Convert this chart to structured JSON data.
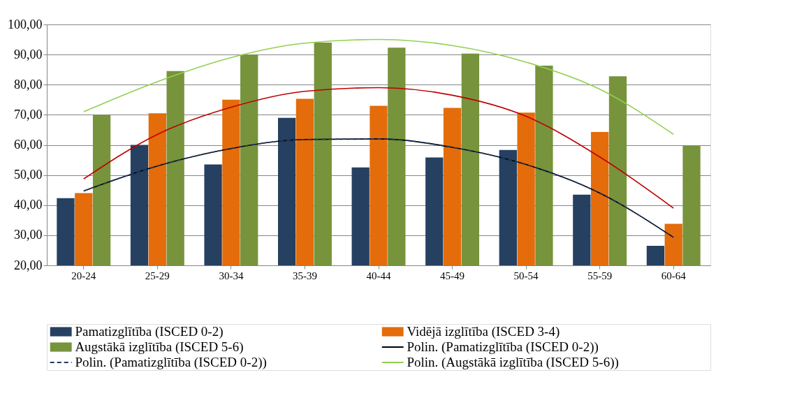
{
  "chart_data": {
    "type": "bar",
    "categories": [
      "20-24",
      "25-29",
      "30-34",
      "35-39",
      "40-44",
      "45-49",
      "50-54",
      "55-59",
      "60-64"
    ],
    "ylim": [
      20,
      100
    ],
    "yticks": [
      {
        "value": 20,
        "label": "20,00"
      },
      {
        "value": 30,
        "label": "30,00"
      },
      {
        "value": 40,
        "label": "40,00"
      },
      {
        "value": 50,
        "label": "50,00"
      },
      {
        "value": 60,
        "label": "60,00"
      },
      {
        "value": 70,
        "label": "70,00"
      },
      {
        "value": 80,
        "label": "80,00"
      },
      {
        "value": 90,
        "label": "90,00"
      },
      {
        "value": 100,
        "label": "100,00"
      }
    ],
    "grid": "y",
    "legend": "bottom",
    "series": [
      {
        "name": "Pamatizglītība (ISCED 0-2)",
        "color": "#254061",
        "values": [
          42.3,
          60,
          53.5,
          69,
          52.5,
          55.8,
          58.3,
          43.5,
          26.5
        ]
      },
      {
        "name": "Vidējā izglītība (ISCED 3-4)",
        "color": "#e46c0a",
        "values": [
          44,
          70.5,
          75,
          75.3,
          73,
          72.3,
          70.7,
          64.3,
          33.8
        ]
      },
      {
        "name": "Augstākā izglītība (ISCED 5-6)",
        "color": "#77933c",
        "values": [
          70,
          84.5,
          90,
          94,
          92.3,
          90.3,
          86.3,
          82.8,
          59.7
        ]
      },
      {
        "name": "Polin. (Pamatizglītība (ISCED 0-2))",
        "type": "line",
        "line_style": "solid",
        "color": "#000000",
        "values": [
          44.7,
          53,
          58.8,
          61.8,
          62,
          59.2,
          53.5,
          44,
          29.3
        ]
      },
      {
        "name": "Polin. (Pamatizglītība (ISCED 0-2))",
        "type": "line",
        "line_style": "dashed",
        "color": "#1f3864",
        "values": [
          44.7,
          53,
          58.8,
          61.8,
          62,
          59.2,
          53.5,
          44,
          29.3
        ]
      },
      {
        "name": "Polin. (Augstākā izglītība (ISCED 5-6))",
        "type": "line",
        "line_style": "solid",
        "color": "#92d050",
        "values": [
          71,
          81,
          89,
          93.8,
          95,
          93,
          87.5,
          78.5,
          63.5
        ]
      },
      {
        "type": "line",
        "line_style": "solid",
        "color": "#c00000",
        "values": [
          48.7,
          63.5,
          72.5,
          77.8,
          79,
          76.5,
          69.5,
          56,
          39
        ]
      }
    ]
  }
}
